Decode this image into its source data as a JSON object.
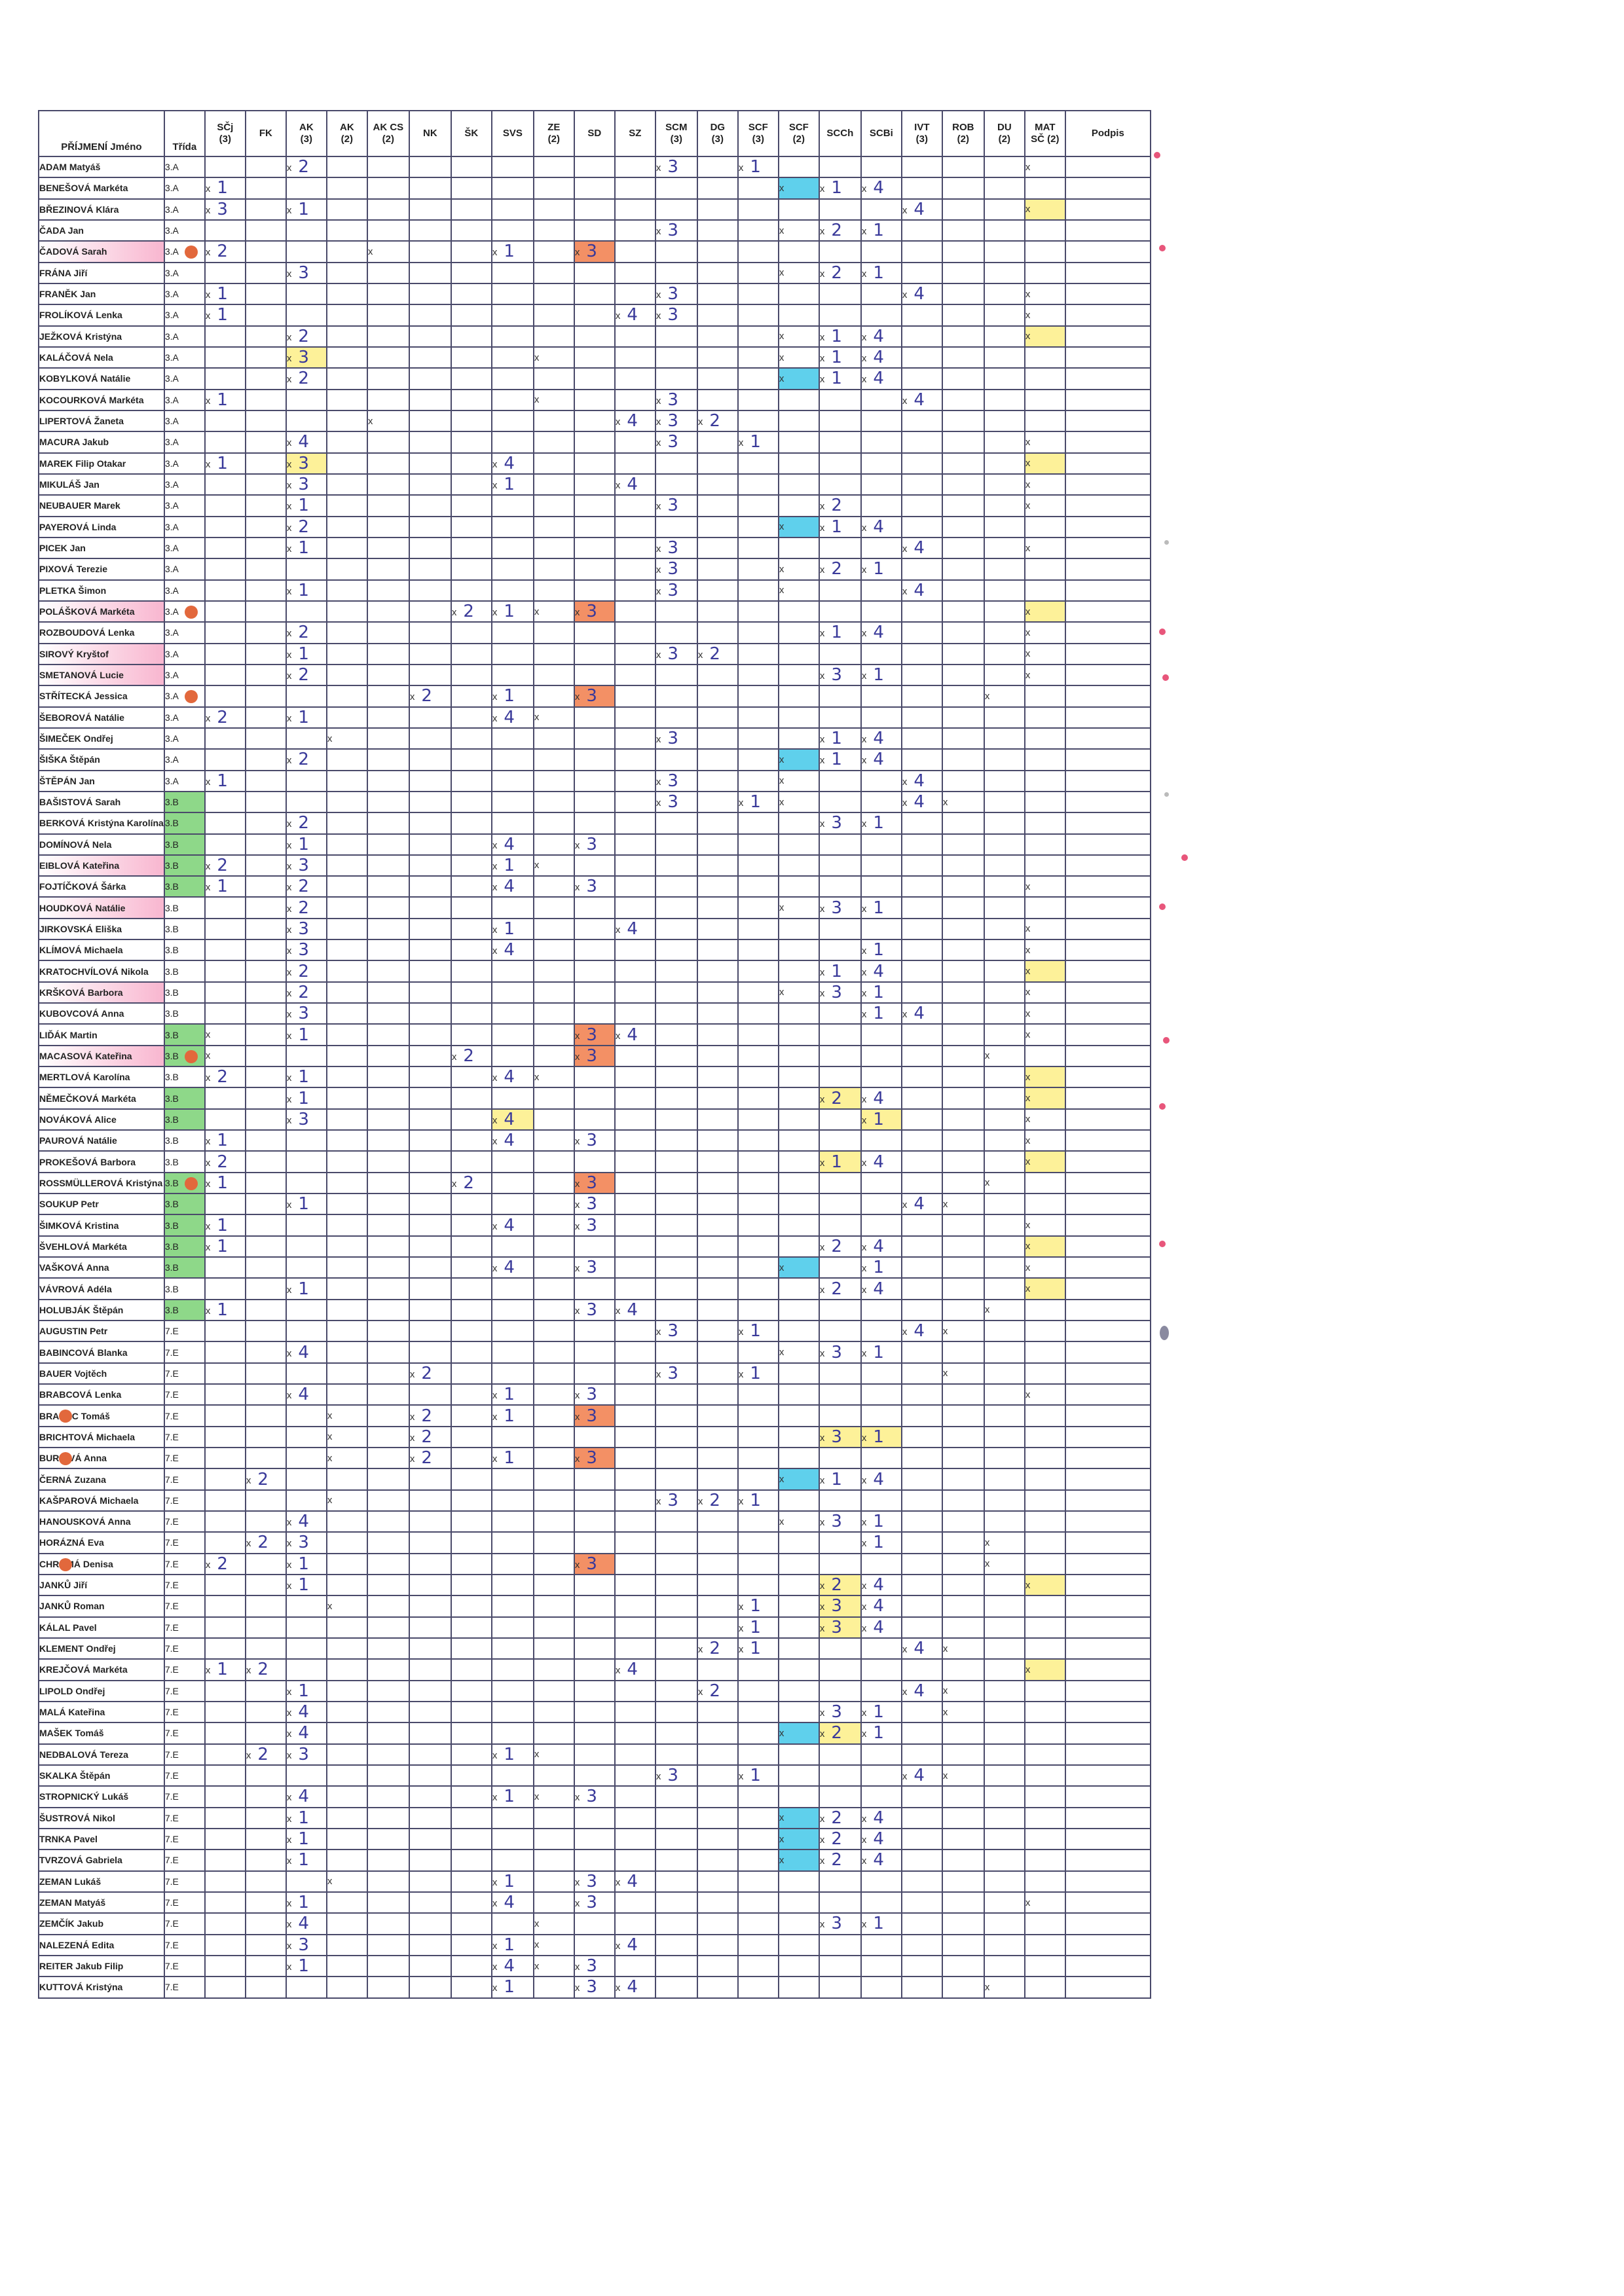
{
  "columns": [
    {
      "key": "name",
      "label": "PŘÍJMENÍ Jméno",
      "w": 156
    },
    {
      "key": "cls",
      "label": "Třída",
      "w": 62
    },
    {
      "key": "scj",
      "label": "SČj\n(3)",
      "w": 62
    },
    {
      "key": "fk",
      "label": "FK",
      "w": 62
    },
    {
      "key": "ak3",
      "label": "AK\n(3)",
      "w": 62
    },
    {
      "key": "ak2",
      "label": "AK\n(2)",
      "w": 62
    },
    {
      "key": "akcs",
      "label": "AK CS\n(2)",
      "w": 64
    },
    {
      "key": "nk",
      "label": "NK",
      "w": 64
    },
    {
      "key": "sk",
      "label": "ŠK",
      "w": 62
    },
    {
      "key": "svs",
      "label": "SVS",
      "w": 64
    },
    {
      "key": "ze",
      "label": "ZE\n(2)",
      "w": 62
    },
    {
      "key": "sd",
      "label": "SD",
      "w": 62
    },
    {
      "key": "sz",
      "label": "SZ",
      "w": 62
    },
    {
      "key": "scm",
      "label": "SCM\n(3)",
      "w": 64
    },
    {
      "key": "dg",
      "label": "DG\n(3)",
      "w": 62
    },
    {
      "key": "scf3",
      "label": "SCF\n(3)",
      "w": 62
    },
    {
      "key": "scf2",
      "label": "SCF\n(2)",
      "w": 62
    },
    {
      "key": "scch",
      "label": "SCCh",
      "w": 64
    },
    {
      "key": "scbi",
      "label": "SCBi",
      "w": 62
    },
    {
      "key": "ivt",
      "label": "IVT\n(3)",
      "w": 62
    },
    {
      "key": "rob",
      "label": "ROB\n(2)",
      "w": 64
    },
    {
      "key": "du",
      "label": "DU\n(2)",
      "w": 62
    },
    {
      "key": "mat",
      "label": "MAT\nSČ (2)",
      "w": 62
    },
    {
      "key": "podpis",
      "label": "Podpis",
      "w": 130
    }
  ],
  "rows": [
    {
      "name": "ADAM Matyáš",
      "cls": "3.A",
      "ak3": "x 2",
      "scm": "x 3",
      "scf3": "x 1",
      "mat": "x"
    },
    {
      "name": "BENEŠOVÁ Markéta",
      "cls": "3.A",
      "scj": "x 1",
      "scf2": "x",
      "scch": "x 1",
      "scbi": "x 4",
      "_hl": {
        "scf2": "c"
      }
    },
    {
      "name": "BŘEZINOVÁ Klára",
      "cls": "3.A",
      "scj": "x 3",
      "ak3": "x 1",
      "ivt": "x 4",
      "mat": "x",
      "_hl": {
        "mat": "y"
      }
    },
    {
      "name": "ČADA Jan",
      "cls": "3.A",
      "scm": "x 3",
      "scf2": "x",
      "scch": "x 2",
      "scbi": "x 1"
    },
    {
      "name": "ČADOVÁ Sarah",
      "cls": "3.A",
      "scj": "x 2",
      "akcs": "x",
      "svs": "x 1",
      "sd": "x 3",
      "_hl": {
        "name": "p",
        "sd": "o"
      },
      "_dot": "cls"
    },
    {
      "name": "FRÁNA Jiří",
      "cls": "3.A",
      "ak3": "x 3",
      "scf2": "x",
      "scch": "x 2",
      "scbi": "x 1"
    },
    {
      "name": "FRANĚK Jan",
      "cls": "3.A",
      "scj": "x 1",
      "scm": "x 3",
      "ivt": "x 4",
      "mat": "x"
    },
    {
      "name": "FROLÍKOVÁ Lenka",
      "cls": "3.A",
      "scj": "x 1",
      "sz": "x 4",
      "scm": "x 3",
      "mat": "x"
    },
    {
      "name": "JEŽKOVÁ Kristýna",
      "cls": "3.A",
      "ak3": "x 2",
      "scf2": "x",
      "scch": "x 1",
      "scbi": "x 4",
      "mat": "x",
      "_hl": {
        "mat": "y"
      }
    },
    {
      "name": "KALÁČOVÁ Nela",
      "cls": "3.A",
      "ak3": "x 3",
      "ze": "x",
      "scf2": "x",
      "scch": "x 1",
      "scbi": "x 4",
      "_hl": {
        "ak3": "y"
      }
    },
    {
      "name": "KOBYLKOVÁ Natálie",
      "cls": "3.A",
      "ak3": "x 2",
      "scf2": "x",
      "scch": "x 1",
      "scbi": "x 4",
      "_hl": {
        "scf2": "c"
      }
    },
    {
      "name": "KOCOURKOVÁ Markéta",
      "cls": "3.A",
      "scj": "x 1",
      "ze": "x",
      "scm": "x 3",
      "ivt": "x 4"
    },
    {
      "name": "LIPERTOVÁ Žaneta",
      "cls": "3.A",
      "akcs": "x",
      "sz": "x 4",
      "scm": "x 3",
      "dg": "x 2"
    },
    {
      "name": "MACURA Jakub",
      "cls": "3.A",
      "ak3": "x 4",
      "scm": "x 3",
      "scf3": "x 1",
      "mat": "x"
    },
    {
      "name": "MAREK Filip Otakar",
      "cls": "3.A",
      "scj": "x 1",
      "ak3": "x 3",
      "svs": "x 4",
      "mat": "x",
      "_hl": {
        "ak3": "y",
        "mat": "y"
      }
    },
    {
      "name": "MIKULÁŠ Jan",
      "cls": "3.A",
      "ak3": "x 3",
      "svs": "x 1",
      "sz": "x 4",
      "mat": "x"
    },
    {
      "name": "NEUBAUER Marek",
      "cls": "3.A",
      "ak3": "x 1",
      "scm": "x 3",
      "scch": "x 2",
      "mat": "x"
    },
    {
      "name": "PAYEROVÁ Linda",
      "cls": "3.A",
      "ak3": "x 2",
      "scf2": "x",
      "scch": "x 1",
      "scbi": "x 4",
      "_hl": {
        "scf2": "c"
      }
    },
    {
      "name": "PICEK Jan",
      "cls": "3.A",
      "ak3": "x 1",
      "scm": "x 3",
      "ivt": "x 4",
      "mat": "x"
    },
    {
      "name": "PIXOVÁ Terezie",
      "cls": "3.A",
      "scm": "x 3",
      "scf2": "x",
      "scch": "x 2",
      "scbi": "x 1"
    },
    {
      "name": "PLETKA Šimon",
      "cls": "3.A",
      "ak3": "x 1",
      "scm": "x 3",
      "scf2": "x",
      "ivt": "x 4"
    },
    {
      "name": "POLÁŠKOVÁ Markéta",
      "cls": "3.A",
      "sk": "x 2",
      "svs": "x 1",
      "ze": "x",
      "sd": "x 3",
      "mat": "x",
      "_hl": {
        "name": "p",
        "sd": "o",
        "mat": "y"
      },
      "_dot": "cls"
    },
    {
      "name": "ROZBOUDOVÁ Lenka",
      "cls": "3.A",
      "ak3": "x 2",
      "scch": "x 1",
      "scbi": "x 4",
      "mat": "x"
    },
    {
      "name": "SIROVÝ Kryštof",
      "cls": "3.A",
      "ak3": "x 1",
      "scm": "x 3",
      "dg": "x 2",
      "mat": "x",
      "_hl": {
        "name": "p"
      }
    },
    {
      "name": "SMETANOVÁ Lucie",
      "cls": "3.A",
      "ak3": "x 2",
      "scch": "x 3",
      "scbi": "x 1",
      "mat": "x",
      "_hl": {
        "name": "p"
      }
    },
    {
      "name": "STŘÍTECKÁ Jessica",
      "cls": "3.A",
      "nk": "x 2",
      "svs": "x 1",
      "sd": "x 3",
      "du": "x",
      "_hl": {
        "sd": "o"
      },
      "_dot": "cls"
    },
    {
      "name": "ŠEBOROVÁ Natálie",
      "cls": "3.A",
      "scj": "x 2",
      "ak3": "x 1",
      "svs": "x 4",
      "ze": "x"
    },
    {
      "name": "ŠIMEČEK Ondřej",
      "cls": "3.A",
      "ak2": "x",
      "scm": "x 3",
      "scch": "x 1",
      "scbi": "x 4"
    },
    {
      "name": "ŠIŠKA Štěpán",
      "cls": "3.A",
      "ak3": "x 2",
      "scf2": "x",
      "scch": "x 1",
      "scbi": "x 4",
      "_hl": {
        "scf2": "c"
      }
    },
    {
      "name": "ŠTĚPÁN Jan",
      "cls": "3.A",
      "scj": "x 1",
      "scm": "x 3",
      "scf2": "x",
      "ivt": "x 4"
    },
    {
      "name": "BAŠISTOVÁ Sarah",
      "cls": "3.B",
      "scm": "x 3",
      "scf3": "x 1",
      "scf2": "x",
      "ivt": "x 4",
      "rob": "x",
      "_hl": {
        "cls": "gr"
      }
    },
    {
      "name": "BERKOVÁ Kristýna Karolína",
      "cls": "3.B",
      "ak3": "x 2",
      "scch": "x 3",
      "scbi": "x 1",
      "_hl": {
        "cls": "gr"
      }
    },
    {
      "name": "DOMÍNOVÁ Nela",
      "cls": "3.B",
      "ak3": "x 1",
      "svs": "x 4",
      "sd": "x 3",
      "_hl": {
        "cls": "gr"
      }
    },
    {
      "name": "EIBLOVÁ Kateřina",
      "cls": "3.B",
      "scj": "x 2",
      "ak3": "x 3",
      "svs": "x 1",
      "ze": "x",
      "_hl": {
        "cls": "gr",
        "name": "p"
      }
    },
    {
      "name": "FOJTÍČKOVÁ Šárka",
      "cls": "3.B",
      "scj": "x 1",
      "ak3": "x 2",
      "svs": "x 4",
      "sd": "x 3",
      "mat": "x",
      "_hl": {
        "cls": "gr"
      }
    },
    {
      "name": "HOUDKOVÁ Natálie",
      "cls": "3.B",
      "ak3": "x 2",
      "scf2": "x",
      "scch": "x 3",
      "scbi": "x 1",
      "_hl": {
        "name": "p"
      }
    },
    {
      "name": "JIRKOVSKÁ Eliška",
      "cls": "3.B",
      "ak3": "x 3",
      "svs": "x 1",
      "sz": "x 4",
      "mat": "x"
    },
    {
      "name": "KLÍMOVÁ Michaela",
      "cls": "3.B",
      "ak3": "x 3",
      "svs": "x 4",
      "scbi": "x 1",
      "mat": "x"
    },
    {
      "name": "KRATOCHVÍLOVÁ Nikola",
      "cls": "3.B",
      "ak3": "x 2",
      "scch": "x 1",
      "scbi": "x 4",
      "mat": "x",
      "_hl": {
        "mat": "y"
      }
    },
    {
      "name": "KRŠKOVÁ Barbora",
      "cls": "3.B",
      "ak3": "x 2",
      "scf2": "x",
      "scch": "x 3",
      "scbi": "x 1",
      "mat": "x",
      "_hl": {
        "name": "p"
      }
    },
    {
      "name": "KUBOVCOVÁ Anna",
      "cls": "3.B",
      "ak3": "x 3",
      "scbi": "x 1",
      "ivt": "x 4",
      "mat": "x"
    },
    {
      "name": "LIĎÁK Martin",
      "cls": "3.B",
      "scj": "x",
      "ak3": "x 1",
      "sd": "x 3",
      "sz": "x 4",
      "mat": "x",
      "_hl": {
        "cls": "gr",
        "sd": "o"
      }
    },
    {
      "name": "MACASOVÁ Kateřina",
      "cls": "3.B",
      "scj": "x",
      "sk": "x 2",
      "sd": "x 3",
      "du": "x",
      "_hl": {
        "cls": "gr",
        "name": "p",
        "sd": "o"
      },
      "_dot": "cls"
    },
    {
      "name": "MERTLOVÁ Karolína",
      "cls": "3.B",
      "scj": "x 2",
      "ak3": "x 1",
      "svs": "x 4",
      "ze": "x",
      "mat": "x",
      "_hl": {
        "mat": "y"
      }
    },
    {
      "name": "NĚMEČKOVÁ Markéta",
      "cls": "3.B",
      "ak3": "x 1",
      "scch": "x 2",
      "scbi": "x 4",
      "mat": "x",
      "_hl": {
        "cls": "gr",
        "scch": "y",
        "mat": "y"
      }
    },
    {
      "name": "NOVÁKOVÁ Alice",
      "cls": "3.B",
      "ak3": "x 3",
      "svs": "x 4",
      "scbi": "x 1",
      "mat": "x",
      "_hl": {
        "cls": "gr",
        "svs": "y",
        "scbi": "y"
      }
    },
    {
      "name": "PAUROVÁ Natálie",
      "cls": "3.B",
      "scj": "x 1",
      "svs": "x 4",
      "sd": "x 3",
      "mat": "x"
    },
    {
      "name": "PROKEŠOVÁ Barbora",
      "cls": "3.B",
      "scj": "x 2",
      "scch": "x 1",
      "scbi": "x 4",
      "mat": "x",
      "_hl": {
        "scch": "y",
        "mat": "y"
      }
    },
    {
      "name": "ROSSMÜLLEROVÁ Kristýna",
      "cls": "3.B",
      "scj": "x 1",
      "sk": "x 2",
      "sd": "x 3",
      "du": "x",
      "_hl": {
        "sd": "o",
        "cls": "gr"
      },
      "_dot": "cls"
    },
    {
      "name": "SOUKUP Petr",
      "cls": "3.B",
      "ak3": "x 1",
      "sd": "x 3",
      "ivt": "x 4",
      "rob": "x",
      "_hl": {
        "cls": "gr"
      }
    },
    {
      "name": "ŠIMKOVÁ Kristina",
      "cls": "3.B",
      "scj": "x 1",
      "svs": "x 4",
      "sd": "x 3",
      "mat": "x",
      "_hl": {
        "cls": "gr"
      }
    },
    {
      "name": "ŠVEHLOVÁ Markéta",
      "cls": "3.B",
      "scj": "x 1",
      "scch": "x 2",
      "scbi": "x 4",
      "mat": "x",
      "_hl": {
        "cls": "gr",
        "mat": "y"
      }
    },
    {
      "name": "VAŠKOVÁ Anna",
      "cls": "3.B",
      "svs": "x 4",
      "sd": "x 3",
      "scf2": "x",
      "scbi": "x 1",
      "mat": "x",
      "_hl": {
        "cls": "gr",
        "scf2": "c"
      }
    },
    {
      "name": "VÁVROVÁ Adéla",
      "cls": "3.B",
      "ak3": "x 1",
      "scch": "x 2",
      "scbi": "x 4",
      "mat": "x",
      "_hl": {
        "mat": "y"
      }
    },
    {
      "name": "HOLUBJÁK Štěpán",
      "cls": "3.B",
      "scj": "x 1",
      "sd": "x 3",
      "sz": "x 4",
      "du": "x",
      "_hl": {
        "cls": "gr"
      }
    },
    {
      "name": "AUGUSTIN Petr",
      "cls": "7.E",
      "scm": "x 3",
      "scf3": "x 1",
      "ivt": "x 4",
      "rob": "x"
    },
    {
      "name": "BABINCOVÁ Blanka",
      "cls": "7.E",
      "ak3": "x 4",
      "scf2": "x",
      "scch": "x 3",
      "scbi": "x 1"
    },
    {
      "name": "BAUER Vojtěch",
      "cls": "7.E",
      "nk": "x 2",
      "scm": "x 3",
      "scf3": "x 1",
      "rob": "x"
    },
    {
      "name": "BRABCOVÁ Lenka",
      "cls": "7.E",
      "ak3": "x 4",
      "svs": "x 1",
      "sd": "x 3",
      "mat": "x"
    },
    {
      "name": "BRABEC Tomáš",
      "cls": "7.E",
      "ak2": "x",
      "nk": "x 2",
      "svs": "x 1",
      "sd": "x 3",
      "_hl": {
        "sd": "o"
      },
      "_dot": "name"
    },
    {
      "name": "BRICHTOVÁ Michaela",
      "cls": "7.E",
      "ak2": "x",
      "nk": "x 2",
      "scch": "x 3",
      "scbi": "x 1",
      "_hl": {
        "scch": "y",
        "scbi": "y"
      }
    },
    {
      "name": "BURIOVÁ Anna",
      "cls": "7.E",
      "ak2": "x",
      "nk": "x 2",
      "svs": "x 1",
      "sd": "x 3",
      "_hl": {
        "sd": "o"
      },
      "_dot": "name"
    },
    {
      "name": "ČERNÁ Zuzana",
      "cls": "7.E",
      "fk": "x 2",
      "scf2": "x",
      "scch": "x 1",
      "scbi": "x 4",
      "_hl": {
        "scf2": "c"
      }
    },
    {
      "name": "KAŠPAROVÁ Michaela",
      "cls": "7.E",
      "ak2": "x",
      "scm": "x 3",
      "dg": "x 2",
      "scf3": "x 1"
    },
    {
      "name": "HANOUSKOVÁ Anna",
      "cls": "7.E",
      "ak3": "x 4",
      "scf2": "x",
      "scch": "x 3",
      "scbi": "x 1"
    },
    {
      "name": "HORÁZNÁ Eva",
      "cls": "7.E",
      "fk": "x 2",
      "ak3": "x 3",
      "scbi": "x 1",
      "du": "x"
    },
    {
      "name": "CHROMÁ Denisa",
      "cls": "7.E",
      "scj": "x 2",
      "ak3": "x 1",
      "sd": "x 3",
      "du": "x",
      "_hl": {
        "sd": "o"
      },
      "_dot": "name"
    },
    {
      "name": "JANKŮ Jiří",
      "cls": "7.E",
      "ak3": "x 1",
      "scch": "x 2",
      "scbi": "x 4",
      "mat": "x",
      "_hl": {
        "scch": "y",
        "mat": "y"
      }
    },
    {
      "name": "JANKŮ Roman",
      "cls": "7.E",
      "ak2": "x",
      "scf3": "x 1",
      "scch": "x 3",
      "scbi": "x 4",
      "_hl": {
        "scch": "y"
      }
    },
    {
      "name": "KÁLAL Pavel",
      "cls": "7.E",
      "scf3": "x 1",
      "scch": "x 3",
      "scbi": "x 4",
      "_hl": {
        "scch": "y"
      }
    },
    {
      "name": "KLEMENT Ondřej",
      "cls": "7.E",
      "dg": "x 2",
      "scf3": "x 1",
      "ivt": "x 4",
      "rob": "x"
    },
    {
      "name": "KREJČOVÁ Markéta",
      "cls": "7.E",
      "scj": "x 1",
      "fk": "x 2",
      "sz": "x 4",
      "mat": "x",
      "_hl": {
        "mat": "y"
      }
    },
    {
      "name": "LIPOLD Ondřej",
      "cls": "7.E",
      "ak3": "x 1",
      "dg": "x 2",
      "ivt": "x 4",
      "rob": "x"
    },
    {
      "name": "MALÁ Kateřina",
      "cls": "7.E",
      "ak3": "x 4",
      "scch": "x 3",
      "scbi": "x 1",
      "rob": "x"
    },
    {
      "name": "MAŠEK Tomáš",
      "cls": "7.E",
      "ak3": "x 4",
      "scf2": "x",
      "scch": "x 2",
      "scbi": "x 1",
      "_hl": {
        "scf2": "c",
        "scch": "y"
      }
    },
    {
      "name": "NEDBALOVÁ Tereza",
      "cls": "7.E",
      "fk": "x 2",
      "ak3": "x 3",
      "svs": "x 1",
      "ze": "x"
    },
    {
      "name": "SKALKA Štěpán",
      "cls": "7.E",
      "scm": "x 3",
      "scf3": "x 1",
      "ivt": "x 4",
      "rob": "x"
    },
    {
      "name": "STROPNICKÝ Lukáš",
      "cls": "7.E",
      "ak3": "x 4",
      "svs": "x 1",
      "ze": "x",
      "sd": "x 3"
    },
    {
      "name": "ŠUSTROVÁ Nikol",
      "cls": "7.E",
      "ak3": "x 1",
      "scf2": "x",
      "scch": "x 2",
      "scbi": "x 4",
      "_hl": {
        "scf2": "c"
      }
    },
    {
      "name": "TRNKA Pavel",
      "cls": "7.E",
      "ak3": "x 1",
      "scf2": "x",
      "scch": "x 2",
      "scbi": "x 4",
      "_hl": {
        "scf2": "c"
      }
    },
    {
      "name": "TVRZOVÁ Gabriela",
      "cls": "7.E",
      "ak3": "x 1",
      "scf2": "x",
      "scch": "x 2",
      "scbi": "x 4",
      "_hl": {
        "scf2": "c"
      }
    },
    {
      "name": "ZEMAN Lukáš",
      "cls": "7.E",
      "ak2": "x",
      "svs": "x 1",
      "sd": "x 3",
      "sz": "x 4"
    },
    {
      "name": "ZEMAN Matyáš",
      "cls": "7.E",
      "ak3": "x 1",
      "svs": "x 4",
      "sd": "x 3",
      "mat": "x"
    },
    {
      "name": "ZEMČÍK Jakub",
      "cls": "7.E",
      "ak3": "x 4",
      "ze": "x",
      "scch": "x 3",
      "scbi": "x 1"
    },
    {
      "name": "NALEZENÁ Edita",
      "cls": "7.E",
      "ak3": "x 3",
      "svs": "x 1",
      "ze": "x",
      "sz": "x 4"
    },
    {
      "name": "REITER Jakub Filip",
      "cls": "7.E",
      "ak3": "x 1",
      "svs": "x 4",
      "ze": "x",
      "sd": "x 3"
    },
    {
      "name": "KUTTOVÁ Kristýna",
      "cls": "7.E",
      "svs": "x 1",
      "sd": "x 3",
      "sz": "x 4",
      "du": "x"
    }
  ],
  "highlight_colors": {
    "y": "#fdf199",
    "c": "#5fd0ec",
    "o": "#f39065",
    "gr": "#8ed889",
    "p": "#f8b2cd"
  }
}
